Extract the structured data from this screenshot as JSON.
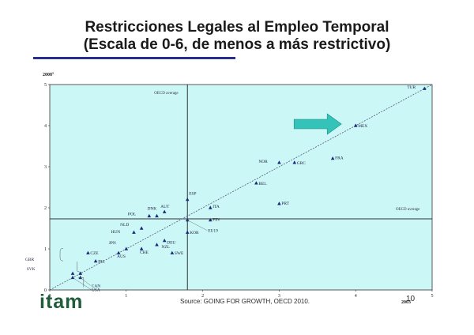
{
  "slide": {
    "title_line1": "Restricciones Legales al Empleo Temporal",
    "title_line2": "(Escala de 0-6, de menos a más restrictivo)",
    "logo_text": "itam",
    "source": "Source: GOING FOR GROWTH, OECD 2010.",
    "page_number": "10"
  },
  "colors": {
    "plot_background": "#ccf7f7",
    "marker": "#1a2a7a",
    "trend_line": "#555577",
    "arrow": "#33c3b8",
    "rule": "#27308f"
  },
  "chart_data": {
    "type": "scatter",
    "xlabel": "2003",
    "ylabel": "2008",
    "ylabel_superscript": "1",
    "xlim": [
      0,
      5
    ],
    "ylim": [
      0,
      5
    ],
    "xticks": [
      "0",
      "1",
      "2",
      "3",
      "4",
      "5"
    ],
    "yticks": [
      "0",
      "1",
      "2",
      "3",
      "4",
      "5"
    ],
    "grid": false,
    "reference_lines": {
      "oecd_x": 1.8,
      "oecd_y": 1.73,
      "vertical_label": "OECD average",
      "horizontal_label": "OECD average"
    },
    "trend_line": [
      [
        0,
        0
      ],
      [
        5,
        5
      ]
    ],
    "points": [
      {
        "label": "TUR",
        "x": 4.9,
        "y": 4.9
      },
      {
        "label": "MEX",
        "x": 4.0,
        "y": 4.0
      },
      {
        "label": "FRA",
        "x": 3.7,
        "y": 3.2
      },
      {
        "label": "GRC",
        "x": 3.2,
        "y": 3.1
      },
      {
        "label": "NOR",
        "x": 3.0,
        "y": 3.1
      },
      {
        "label": "BEL",
        "x": 2.7,
        "y": 2.6
      },
      {
        "label": "PRT",
        "x": 3.0,
        "y": 2.1
      },
      {
        "label": "ESP",
        "x": 1.8,
        "y": 2.2
      },
      {
        "label": "ITA",
        "x": 2.1,
        "y": 2.0
      },
      {
        "label": "AUT",
        "x": 1.5,
        "y": 1.9
      },
      {
        "label": "FIN",
        "x": 2.1,
        "y": 1.7
      },
      {
        "label": "DNK",
        "x": 1.4,
        "y": 1.8
      },
      {
        "label": "POL",
        "x": 1.3,
        "y": 1.8
      },
      {
        "label": "EU19",
        "x": 1.8,
        "y": 1.7
      },
      {
        "label": "NLD",
        "x": 1.2,
        "y": 1.5
      },
      {
        "label": "HUN",
        "x": 1.1,
        "y": 1.4
      },
      {
        "label": "DEU",
        "x": 1.5,
        "y": 1.2
      },
      {
        "label": "KOR",
        "x": 1.8,
        "y": 1.4
      },
      {
        "label": "NZL",
        "x": 1.4,
        "y": 1.1
      },
      {
        "label": "CHE",
        "x": 1.2,
        "y": 1.0
      },
      {
        "label": "JPN",
        "x": 1.0,
        "y": 1.0
      },
      {
        "label": "SWE",
        "x": 1.6,
        "y": 0.9
      },
      {
        "label": "AUS",
        "x": 0.9,
        "y": 0.9
      },
      {
        "label": "CZE",
        "x": 0.5,
        "y": 0.9
      },
      {
        "label": "IRL",
        "x": 0.6,
        "y": 0.7
      },
      {
        "label": "GBR",
        "x": 0.3,
        "y": 0.4
      },
      {
        "label": "SVK",
        "x": 0.4,
        "y": 0.4
      },
      {
        "label": "CAN",
        "x": 0.4,
        "y": 0.3
      },
      {
        "label": "USA",
        "x": 0.3,
        "y": 0.3
      }
    ],
    "annotation": {
      "type": "arrow",
      "direction": "right",
      "near": "MEX"
    }
  }
}
